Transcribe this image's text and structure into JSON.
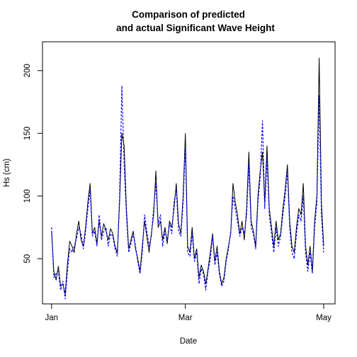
{
  "chart_data": {
    "type": "line",
    "title_lines": [
      "Comparison of predicted",
      "and actual Significant Wave Height"
    ],
    "xlabel": "Date",
    "ylabel": "Hs (cm)",
    "x_tick_labels": [
      "Jan",
      "Mar",
      "May"
    ],
    "x_tick_days": [
      0,
      59,
      120
    ],
    "y_ticks": [
      50,
      100,
      150,
      200
    ],
    "xlim": [
      -4,
      125
    ],
    "ylim": [
      14,
      223
    ],
    "x_units": "day index from Jan 1",
    "series": [
      {
        "color": "#000000",
        "x": [
          0,
          1,
          2,
          3,
          4,
          5,
          6,
          7,
          8,
          9,
          10,
          11,
          12,
          13,
          14,
          15,
          16,
          17,
          18,
          19,
          20,
          21,
          22,
          23,
          24,
          25,
          26,
          27,
          28,
          29,
          30,
          31,
          32,
          33,
          34,
          35,
          36,
          37,
          38,
          39,
          40,
          41,
          42,
          43,
          44,
          45,
          46,
          47,
          48,
          49,
          50,
          51,
          52,
          53,
          54,
          55,
          56,
          57,
          58,
          59,
          60,
          61,
          62,
          63,
          64,
          65,
          66,
          67,
          68,
          69,
          70,
          71,
          72,
          73,
          74,
          75,
          76,
          77,
          78,
          79,
          80,
          81,
          82,
          83,
          84,
          85,
          86,
          87,
          88,
          89,
          90,
          91,
          92,
          93,
          94,
          95,
          96,
          97,
          98,
          99,
          100,
          101,
          102,
          103,
          104,
          105,
          106,
          107,
          108,
          109,
          110,
          111,
          112,
          113,
          114,
          115,
          116,
          117,
          118,
          119,
          120
        ],
        "values": [
          72,
          40,
          33,
          44,
          28,
          30,
          22,
          46,
          64,
          60,
          55,
          70,
          80,
          65,
          60,
          75,
          95,
          110,
          70,
          75,
          62,
          80,
          68,
          78,
          72,
          65,
          74,
          70,
          60,
          55,
          95,
          150,
          140,
          90,
          58,
          65,
          72,
          58,
          50,
          40,
          60,
          80,
          68,
          55,
          70,
          85,
          120,
          75,
          80,
          65,
          75,
          62,
          80,
          75,
          90,
          110,
          78,
          70,
          100,
          150,
          60,
          55,
          75,
          50,
          58,
          35,
          45,
          40,
          30,
          42,
          55,
          70,
          48,
          60,
          40,
          30,
          35,
          50,
          60,
          70,
          110,
          95,
          85,
          70,
          80,
          65,
          90,
          135,
          80,
          72,
          60,
          100,
          120,
          135,
          95,
          140,
          90,
          75,
          60,
          80,
          65,
          70,
          90,
          105,
          125,
          80,
          60,
          55,
          75,
          90,
          85,
          110,
          60,
          45,
          60,
          40,
          80,
          100,
          210,
          95,
          60
        ],
        "dash": ""
      },
      {
        "color": "#0000ff",
        "x": [
          0,
          1,
          2,
          3,
          4,
          5,
          6,
          7,
          8,
          9,
          10,
          11,
          12,
          13,
          14,
          15,
          16,
          17,
          18,
          19,
          20,
          21,
          22,
          23,
          24,
          25,
          26,
          27,
          28,
          29,
          30,
          31,
          32,
          33,
          34,
          35,
          36,
          37,
          38,
          39,
          40,
          41,
          42,
          43,
          44,
          45,
          46,
          47,
          48,
          49,
          50,
          51,
          52,
          53,
          54,
          55,
          56,
          57,
          58,
          59,
          60,
          61,
          62,
          63,
          64,
          65,
          66,
          67,
          68,
          69,
          70,
          71,
          72,
          73,
          74,
          75,
          76,
          77,
          78,
          79,
          80,
          81,
          82,
          83,
          84,
          85,
          86,
          87,
          88,
          89,
          90,
          91,
          92,
          93,
          94,
          95,
          96,
          97,
          98,
          99,
          100,
          101,
          102,
          103,
          104,
          105,
          106,
          107,
          108,
          109,
          110,
          111,
          112,
          113,
          114,
          115,
          116,
          117,
          118,
          119,
          120
        ],
        "values": [
          75,
          35,
          38,
          40,
          25,
          32,
          18,
          40,
          58,
          55,
          60,
          66,
          75,
          70,
          58,
          72,
          90,
          105,
          68,
          72,
          60,
          85,
          65,
          72,
          75,
          60,
          70,
          68,
          58,
          52,
          100,
          188,
          125,
          85,
          55,
          62,
          70,
          60,
          48,
          38,
          55,
          85,
          72,
          60,
          68,
          90,
          110,
          78,
          85,
          60,
          72,
          65,
          78,
          70,
          95,
          105,
          72,
          68,
          95,
          140,
          55,
          52,
          70,
          48,
          55,
          30,
          42,
          38,
          25,
          40,
          50,
          68,
          45,
          55,
          38,
          28,
          32,
          48,
          58,
          72,
          100,
          90,
          80,
          68,
          75,
          70,
          85,
          125,
          75,
          70,
          58,
          95,
          115,
          160,
          90,
          130,
          85,
          70,
          55,
          75,
          60,
          68,
          85,
          100,
          120,
          75,
          55,
          50,
          70,
          85,
          80,
          100,
          55,
          40,
          55,
          38,
          75,
          95,
          180,
          85,
          55
        ],
        "dash": "3,2"
      }
    ]
  }
}
